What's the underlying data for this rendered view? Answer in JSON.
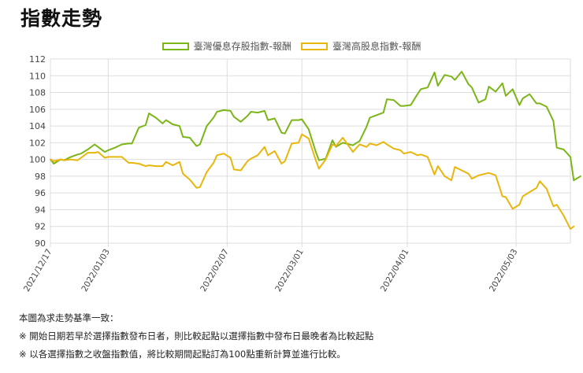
{
  "page": {
    "title": "指數走勢"
  },
  "chart_data": {
    "type": "line",
    "title": "",
    "xlabel": "",
    "ylabel": "",
    "ylim": [
      90,
      112
    ],
    "yticks": [
      90,
      92,
      94,
      96,
      98,
      100,
      102,
      104,
      106,
      108,
      110,
      112
    ],
    "grid": true,
    "legend_position": "top",
    "start_date": "2021/12/17",
    "end_date": "2022/05/19",
    "xtick_labels": [
      {
        "date": "2021/12/17",
        "label": "2021/12/17"
      },
      {
        "date": "2022/01/03",
        "label": "2022/01/03"
      },
      {
        "date": "2022/02/07",
        "label": "2022/02/07"
      },
      {
        "date": "2022/03/01",
        "label": "2022/03/01"
      },
      {
        "date": "2022/04/01",
        "label": "2022/04/01"
      },
      {
        "date": "2022/05/03",
        "label": "2022/05/03"
      }
    ],
    "series": [
      {
        "name": "臺灣優息存股指數-報酬",
        "color": "#7cb518",
        "points": [
          [
            "2021/12/17",
            100.0
          ],
          [
            "2021/12/18",
            99.5
          ],
          [
            "2021/12/20",
            100.0
          ],
          [
            "2021/12/21",
            99.9
          ],
          [
            "2021/12/23",
            100.3
          ],
          [
            "2021/12/25",
            100.6
          ],
          [
            "2021/12/26",
            100.7
          ],
          [
            "2021/12/28",
            101.2
          ],
          [
            "2021/12/30",
            101.8
          ],
          [
            "2021/12/31",
            101.5
          ],
          [
            "2022/01/02",
            100.9
          ],
          [
            "2022/01/03",
            101.1
          ],
          [
            "2022/01/05",
            101.4
          ],
          [
            "2022/01/07",
            101.8
          ],
          [
            "2022/01/09",
            101.9
          ],
          [
            "2022/01/10",
            101.9
          ],
          [
            "2022/01/12",
            103.8
          ],
          [
            "2022/01/14",
            104.1
          ],
          [
            "2022/01/15",
            105.5
          ],
          [
            "2022/01/17",
            105.0
          ],
          [
            "2022/01/19",
            104.3
          ],
          [
            "2022/01/20",
            104.7
          ],
          [
            "2022/01/22",
            104.2
          ],
          [
            "2022/01/24",
            104.0
          ],
          [
            "2022/01/25",
            102.7
          ],
          [
            "2022/01/27",
            102.6
          ],
          [
            "2022/01/29",
            101.6
          ],
          [
            "2022/01/30",
            101.8
          ],
          [
            "2022/02/01",
            104.0
          ],
          [
            "2022/02/03",
            105.0
          ],
          [
            "2022/02/04",
            105.7
          ],
          [
            "2022/02/06",
            105.9
          ],
          [
            "2022/02/08",
            105.8
          ],
          [
            "2022/02/09",
            105.1
          ],
          [
            "2022/02/11",
            104.5
          ],
          [
            "2022/02/13",
            105.2
          ],
          [
            "2022/02/14",
            105.7
          ],
          [
            "2022/02/16",
            105.6
          ],
          [
            "2022/02/18",
            105.8
          ],
          [
            "2022/02/19",
            104.7
          ],
          [
            "2022/02/21",
            104.9
          ],
          [
            "2022/02/23",
            103.2
          ],
          [
            "2022/02/24",
            103.1
          ],
          [
            "2022/02/26",
            104.7
          ],
          [
            "2022/02/28",
            104.7
          ],
          [
            "2022/03/01",
            104.8
          ],
          [
            "2022/03/03",
            103.6
          ],
          [
            "2022/03/05",
            101.0
          ],
          [
            "2022/03/06",
            99.9
          ],
          [
            "2022/03/08",
            100.1
          ],
          [
            "2022/03/10",
            102.3
          ],
          [
            "2022/03/11",
            101.5
          ],
          [
            "2022/03/13",
            102.0
          ],
          [
            "2022/03/15",
            101.8
          ],
          [
            "2022/03/16",
            101.7
          ],
          [
            "2022/03/18",
            102.2
          ],
          [
            "2022/03/20",
            103.9
          ],
          [
            "2022/03/21",
            105.0
          ],
          [
            "2022/03/23",
            105.3
          ],
          [
            "2022/03/25",
            105.6
          ],
          [
            "2022/03/26",
            107.2
          ],
          [
            "2022/03/28",
            107.1
          ],
          [
            "2022/03/30",
            106.4
          ],
          [
            "2022/03/31",
            106.4
          ],
          [
            "2022/04/02",
            106.5
          ],
          [
            "2022/04/04",
            107.8
          ],
          [
            "2022/04/05",
            108.4
          ],
          [
            "2022/04/07",
            108.6
          ],
          [
            "2022/04/09",
            110.4
          ],
          [
            "2022/04/10",
            108.8
          ],
          [
            "2022/04/12",
            110.1
          ],
          [
            "2022/04/14",
            109.9
          ],
          [
            "2022/04/15",
            109.5
          ],
          [
            "2022/04/17",
            110.5
          ],
          [
            "2022/04/19",
            109.0
          ],
          [
            "2022/04/20",
            108.6
          ],
          [
            "2022/04/22",
            106.8
          ],
          [
            "2022/04/24",
            107.2
          ],
          [
            "2022/04/25",
            108.7
          ],
          [
            "2022/04/27",
            108.1
          ],
          [
            "2022/04/29",
            109.1
          ],
          [
            "2022/04/30",
            107.6
          ],
          [
            "2022/05/02",
            108.4
          ],
          [
            "2022/05/04",
            106.5
          ],
          [
            "2022/05/05",
            107.3
          ],
          [
            "2022/05/07",
            107.8
          ],
          [
            "2022/05/09",
            106.7
          ],
          [
            "2022/05/10",
            106.7
          ],
          [
            "2022/05/12",
            106.3
          ],
          [
            "2022/05/14",
            104.6
          ],
          [
            "2022/05/15",
            101.4
          ],
          [
            "2022/05/17",
            101.2
          ],
          [
            "2022/05/19",
            100.3
          ],
          [
            "2022/05/20",
            97.5
          ],
          [
            "2022/05/22",
            98.0
          ]
        ]
      },
      {
        "name": "臺灣高股息指數-報酬",
        "color": "#e8b60c",
        "points": [
          [
            "2021/12/17",
            100.0
          ],
          [
            "2021/12/18",
            99.8
          ],
          [
            "2021/12/20",
            100.0
          ],
          [
            "2021/12/21",
            99.9
          ],
          [
            "2021/12/23",
            100.0
          ],
          [
            "2021/12/25",
            99.9
          ],
          [
            "2021/12/26",
            100.2
          ],
          [
            "2021/12/28",
            100.8
          ],
          [
            "2021/12/30",
            100.8
          ],
          [
            "2021/12/31",
            100.9
          ],
          [
            "2022/01/02",
            100.2
          ],
          [
            "2022/01/03",
            100.3
          ],
          [
            "2022/01/05",
            100.3
          ],
          [
            "2022/01/07",
            100.3
          ],
          [
            "2022/01/09",
            99.6
          ],
          [
            "2022/01/10",
            99.6
          ],
          [
            "2022/01/12",
            99.5
          ],
          [
            "2022/01/14",
            99.2
          ],
          [
            "2022/01/15",
            99.3
          ],
          [
            "2022/01/17",
            99.2
          ],
          [
            "2022/01/19",
            99.2
          ],
          [
            "2022/01/20",
            99.7
          ],
          [
            "2022/01/22",
            99.3
          ],
          [
            "2022/01/24",
            99.7
          ],
          [
            "2022/01/25",
            98.3
          ],
          [
            "2022/01/27",
            97.6
          ],
          [
            "2022/01/29",
            96.6
          ],
          [
            "2022/01/30",
            96.7
          ],
          [
            "2022/02/01",
            98.5
          ],
          [
            "2022/02/03",
            99.6
          ],
          [
            "2022/02/04",
            100.5
          ],
          [
            "2022/02/06",
            100.7
          ],
          [
            "2022/02/08",
            100.2
          ],
          [
            "2022/02/09",
            98.8
          ],
          [
            "2022/02/11",
            98.7
          ],
          [
            "2022/02/13",
            99.8
          ],
          [
            "2022/02/14",
            100.1
          ],
          [
            "2022/02/16",
            100.5
          ],
          [
            "2022/02/18",
            101.5
          ],
          [
            "2022/02/19",
            100.5
          ],
          [
            "2022/02/21",
            101.0
          ],
          [
            "2022/02/23",
            99.5
          ],
          [
            "2022/02/24",
            99.8
          ],
          [
            "2022/02/26",
            101.9
          ],
          [
            "2022/02/28",
            102.0
          ],
          [
            "2022/03/01",
            103.0
          ],
          [
            "2022/03/03",
            102.5
          ],
          [
            "2022/03/05",
            100.0
          ],
          [
            "2022/03/06",
            98.9
          ],
          [
            "2022/03/08",
            100.0
          ],
          [
            "2022/03/10",
            101.8
          ],
          [
            "2022/03/11",
            101.6
          ],
          [
            "2022/03/13",
            102.6
          ],
          [
            "2022/03/15",
            101.5
          ],
          [
            "2022/03/16",
            100.9
          ],
          [
            "2022/03/18",
            101.8
          ],
          [
            "2022/03/20",
            101.5
          ],
          [
            "2022/03/21",
            101.9
          ],
          [
            "2022/03/23",
            101.7
          ],
          [
            "2022/03/25",
            102.1
          ],
          [
            "2022/03/26",
            101.8
          ],
          [
            "2022/03/28",
            101.3
          ],
          [
            "2022/03/30",
            101.1
          ],
          [
            "2022/03/31",
            100.7
          ],
          [
            "2022/04/02",
            100.9
          ],
          [
            "2022/04/04",
            100.5
          ],
          [
            "2022/04/05",
            100.6
          ],
          [
            "2022/04/07",
            100.3
          ],
          [
            "2022/04/09",
            98.2
          ],
          [
            "2022/04/10",
            99.2
          ],
          [
            "2022/04/12",
            98.0
          ],
          [
            "2022/04/14",
            97.5
          ],
          [
            "2022/04/15",
            99.1
          ],
          [
            "2022/04/17",
            98.7
          ],
          [
            "2022/04/19",
            98.3
          ],
          [
            "2022/04/20",
            97.7
          ],
          [
            "2022/04/22",
            98.1
          ],
          [
            "2022/04/24",
            98.3
          ],
          [
            "2022/04/25",
            98.4
          ],
          [
            "2022/04/27",
            98.1
          ],
          [
            "2022/04/29",
            95.6
          ],
          [
            "2022/04/30",
            95.5
          ],
          [
            "2022/05/02",
            94.1
          ],
          [
            "2022/05/04",
            94.6
          ],
          [
            "2022/05/05",
            95.6
          ],
          [
            "2022/05/07",
            96.1
          ],
          [
            "2022/05/09",
            96.6
          ],
          [
            "2022/05/10",
            97.4
          ],
          [
            "2022/05/12",
            96.5
          ],
          [
            "2022/05/14",
            94.4
          ],
          [
            "2022/05/15",
            94.6
          ],
          [
            "2022/05/17",
            93.3
          ],
          [
            "2022/05/19",
            91.7
          ],
          [
            "2022/05/20",
            92.0
          ]
        ]
      }
    ]
  },
  "notes": {
    "line1": "本圖為求走勢基準一致：",
    "line2": "※ 開始日期若早於選擇指數發布日者，則比較起點以選擇指數中發布日最晚者為比較起點",
    "line3": "※ 以各選擇指數之收盤指數值，將比較期間起點訂為100點重新計算並進行比較。"
  }
}
